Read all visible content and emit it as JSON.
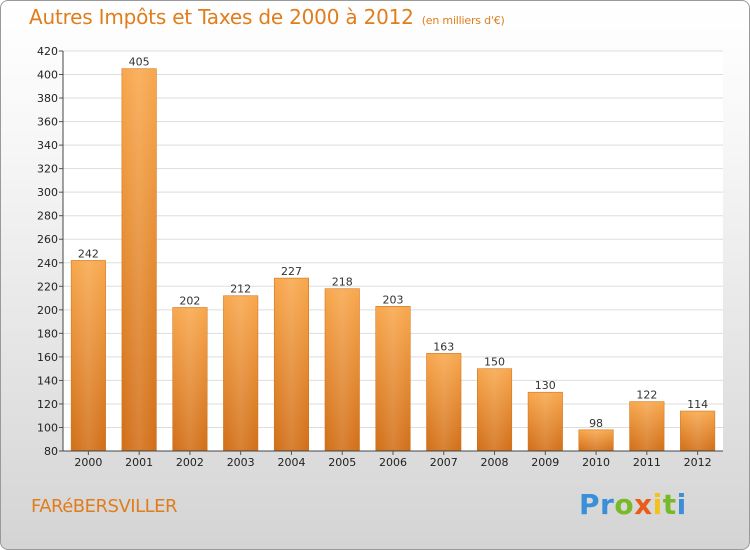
{
  "page": {
    "commune": "FARéBERSVILLER",
    "logo": {
      "letters": [
        {
          "ch": "P",
          "color": "#3a8fd8"
        },
        {
          "ch": "r",
          "color": "#3a8fd8"
        },
        {
          "ch": "o",
          "color": "#78b928"
        },
        {
          "ch": "x",
          "color": "#e85d1c"
        },
        {
          "ch": "i",
          "color": "#f2c21b"
        },
        {
          "ch": "t",
          "color": "#78b928"
        },
        {
          "ch": "i",
          "color": "#3a8fd8"
        }
      ]
    }
  },
  "chart_data": {
    "type": "bar",
    "title": "Autres Impôts et Taxes de 2000 à 2012",
    "unit": "(en milliers d'€)",
    "categories": [
      "2000",
      "2001",
      "2002",
      "2003",
      "2004",
      "2005",
      "2006",
      "2007",
      "2008",
      "2009",
      "2010",
      "2011",
      "2012"
    ],
    "values": [
      242,
      405,
      202,
      212,
      227,
      218,
      203,
      163,
      150,
      130,
      98,
      122,
      114
    ],
    "ylim": [
      80,
      420
    ],
    "yticks": [
      80,
      100,
      120,
      140,
      160,
      180,
      200,
      220,
      240,
      260,
      280,
      300,
      320,
      340,
      360,
      380,
      400,
      420
    ],
    "grid": true,
    "bar_color": "#f0952f"
  }
}
